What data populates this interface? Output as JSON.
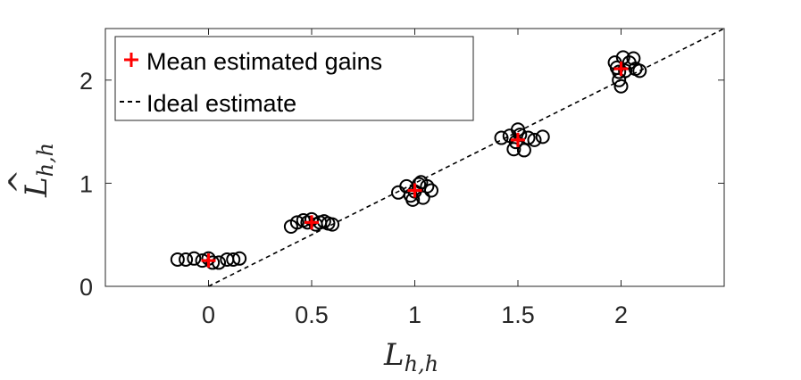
{
  "chart_data": {
    "type": "scatter",
    "title": "",
    "xlabel": "L",
    "xlabel_sub": "h,h",
    "ylabel": "L",
    "ylabel_sub": "h,h",
    "ylabel_hat": true,
    "xlim": [
      -0.5,
      2.5
    ],
    "ylim": [
      0,
      2.5
    ],
    "xticks": [
      0,
      0.5,
      1,
      1.5,
      2
    ],
    "xtick_labels": [
      "0",
      "0.5",
      "1",
      "1.5",
      "2"
    ],
    "yticks": [
      0,
      1,
      2
    ],
    "ytick_labels": [
      "0",
      "1",
      "2"
    ],
    "grid": false,
    "legend_position": "top-left",
    "series": [
      {
        "name": "",
        "kind": "samples",
        "marker": "open-circle",
        "color": "#000000",
        "points": [
          [
            -0.15,
            0.26
          ],
          [
            -0.11,
            0.26
          ],
          [
            -0.07,
            0.27
          ],
          [
            -0.03,
            0.25
          ],
          [
            0.0,
            0.27
          ],
          [
            0.02,
            0.23
          ],
          [
            0.05,
            0.23
          ],
          [
            0.09,
            0.26
          ],
          [
            0.12,
            0.26
          ],
          [
            0.15,
            0.27
          ],
          [
            0.4,
            0.58
          ],
          [
            0.43,
            0.62
          ],
          [
            0.46,
            0.64
          ],
          [
            0.48,
            0.62
          ],
          [
            0.5,
            0.65
          ],
          [
            0.52,
            0.6
          ],
          [
            0.54,
            0.62
          ],
          [
            0.56,
            0.63
          ],
          [
            0.58,
            0.61
          ],
          [
            0.6,
            0.6
          ],
          [
            0.92,
            0.91
          ],
          [
            0.96,
            0.97
          ],
          [
            0.98,
            0.88
          ],
          [
            0.99,
            0.84
          ],
          [
            1.0,
            0.92
          ],
          [
            1.02,
            0.99
          ],
          [
            1.03,
            1.01
          ],
          [
            1.04,
            0.86
          ],
          [
            1.06,
            0.97
          ],
          [
            1.08,
            0.93
          ],
          [
            1.42,
            1.44
          ],
          [
            1.46,
            1.46
          ],
          [
            1.48,
            1.33
          ],
          [
            1.49,
            1.4
          ],
          [
            1.5,
            1.52
          ],
          [
            1.51,
            1.47
          ],
          [
            1.53,
            1.32
          ],
          [
            1.55,
            1.44
          ],
          [
            1.58,
            1.42
          ],
          [
            1.62,
            1.45
          ],
          [
            1.97,
            2.17
          ],
          [
            1.98,
            2.12
          ],
          [
            1.99,
            2.08
          ],
          [
            1.99,
            2.0
          ],
          [
            2.0,
            1.94
          ],
          [
            2.01,
            2.22
          ],
          [
            2.02,
            2.09
          ],
          [
            2.04,
            2.17
          ],
          [
            2.06,
            2.21
          ],
          [
            2.07,
            2.11
          ],
          [
            2.09,
            2.09
          ]
        ]
      },
      {
        "name": "Mean estimated gains",
        "kind": "mean",
        "marker": "plus",
        "color": "#ff0000",
        "points": [
          [
            0.0,
            0.25
          ],
          [
            0.5,
            0.62
          ],
          [
            1.0,
            0.93
          ],
          [
            1.5,
            1.42
          ],
          [
            2.0,
            2.11
          ]
        ]
      },
      {
        "name": "Ideal estimate",
        "kind": "line",
        "style": "dashed",
        "color": "#000000",
        "points": [
          [
            0,
            0
          ],
          [
            2.5,
            2.5
          ]
        ]
      }
    ]
  }
}
